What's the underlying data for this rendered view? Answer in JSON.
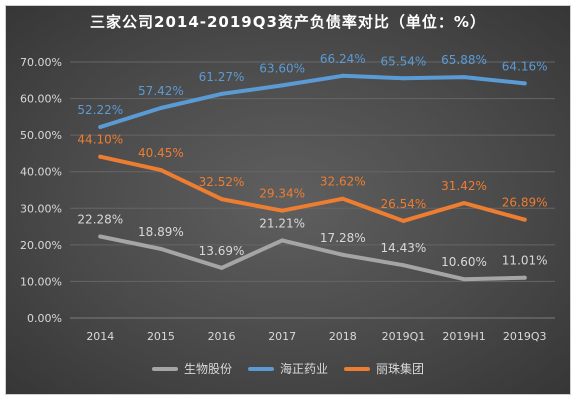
{
  "chart_data": {
    "type": "line",
    "title": "三家公司2014-2019Q3资产负债率对比（单位：%）",
    "xlabel": "",
    "ylabel": "",
    "categories": [
      "2014",
      "2015",
      "2016",
      "2017",
      "2018",
      "2019Q1",
      "2019H1",
      "2019Q3"
    ],
    "ylim": [
      0,
      70
    ],
    "ytick_labels": [
      "0.00%",
      "10.00%",
      "20.00%",
      "30.00%",
      "40.00%",
      "50.00%",
      "60.00%",
      "70.00%"
    ],
    "grid": true,
    "legend_position": "bottom",
    "series": [
      {
        "name": "生物股份",
        "color": "#a5a5a5",
        "label_color": "#d9d9d9",
        "values": [
          22.28,
          18.89,
          13.69,
          21.21,
          17.28,
          14.43,
          10.6,
          11.01
        ]
      },
      {
        "name": "海正药业",
        "color": "#5b9bd5",
        "label_color": "#5b9bd5",
        "values": [
          52.22,
          57.42,
          61.27,
          63.6,
          66.24,
          65.54,
          65.88,
          64.16
        ]
      },
      {
        "name": "丽珠集团",
        "color": "#ed7d31",
        "label_color": "#ed7d31",
        "values": [
          44.1,
          40.45,
          32.52,
          29.34,
          32.62,
          26.54,
          31.42,
          26.89
        ]
      }
    ]
  }
}
